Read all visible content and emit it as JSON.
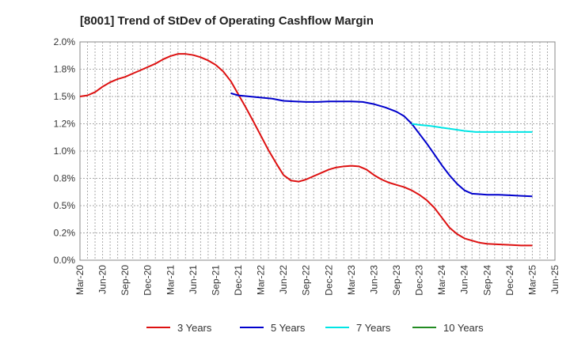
{
  "chart_data": {
    "type": "line",
    "title": "[8001]  Trend of StDev of Operating Cashflow Margin",
    "xlabel": "",
    "ylabel": "",
    "ylim": [
      0,
      2.0
    ],
    "yticks": [
      0,
      0.25,
      0.5,
      0.75,
      1.0,
      1.25,
      1.5,
      1.75,
      2.0
    ],
    "ytick_labels": [
      "0.0%",
      "0.2%",
      "0.5%",
      "0.8%",
      "1.0%",
      "1.2%",
      "1.5%",
      "1.8%",
      "2.0%"
    ],
    "x_labels": [
      "Mar-20",
      "Jun-20",
      "Sep-20",
      "Dec-20",
      "Mar-21",
      "Jun-21",
      "Sep-21",
      "Dec-21",
      "Mar-22",
      "Jun-22",
      "Sep-22",
      "Dec-22",
      "Mar-23",
      "Jun-23",
      "Sep-23",
      "Dec-23",
      "Mar-24",
      "Jun-24",
      "Sep-24",
      "Dec-24",
      "Mar-25",
      "Jun-25"
    ],
    "grid": true,
    "legend_position": "bottom",
    "series": [
      {
        "name": "3 Years",
        "color": "#dd1111",
        "points": [
          [
            0,
            1.5
          ],
          [
            0.33,
            1.51
          ],
          [
            0.67,
            1.54
          ],
          [
            1,
            1.59
          ],
          [
            1.33,
            1.63
          ],
          [
            1.67,
            1.66
          ],
          [
            2,
            1.68
          ],
          [
            2.33,
            1.71
          ],
          [
            2.67,
            1.74
          ],
          [
            3,
            1.77
          ],
          [
            3.33,
            1.8
          ],
          [
            3.67,
            1.84
          ],
          [
            4,
            1.87
          ],
          [
            4.33,
            1.89
          ],
          [
            4.67,
            1.89
          ],
          [
            5,
            1.88
          ],
          [
            5.33,
            1.86
          ],
          [
            5.67,
            1.83
          ],
          [
            6,
            1.79
          ],
          [
            6.33,
            1.73
          ],
          [
            6.67,
            1.64
          ],
          [
            7,
            1.52
          ],
          [
            7.33,
            1.4
          ],
          [
            7.67,
            1.27
          ],
          [
            8,
            1.14
          ],
          [
            8.33,
            1.01
          ],
          [
            8.67,
            0.89
          ],
          [
            9,
            0.78
          ],
          [
            9.33,
            0.73
          ],
          [
            9.67,
            0.72
          ],
          [
            10,
            0.74
          ],
          [
            10.33,
            0.77
          ],
          [
            10.67,
            0.8
          ],
          [
            11,
            0.83
          ],
          [
            11.33,
            0.85
          ],
          [
            11.67,
            0.86
          ],
          [
            12,
            0.865
          ],
          [
            12.33,
            0.86
          ],
          [
            12.67,
            0.83
          ],
          [
            13,
            0.78
          ],
          [
            13.33,
            0.74
          ],
          [
            13.67,
            0.71
          ],
          [
            14,
            0.69
          ],
          [
            14.33,
            0.67
          ],
          [
            14.67,
            0.64
          ],
          [
            15,
            0.6
          ],
          [
            15.33,
            0.55
          ],
          [
            15.67,
            0.48
          ],
          [
            16,
            0.39
          ],
          [
            16.33,
            0.3
          ],
          [
            16.67,
            0.24
          ],
          [
            17,
            0.2
          ],
          [
            17.33,
            0.18
          ],
          [
            17.67,
            0.16
          ],
          [
            18,
            0.15
          ],
          [
            18.5,
            0.145
          ],
          [
            19,
            0.14
          ],
          [
            19.5,
            0.135
          ],
          [
            20,
            0.135
          ]
        ]
      },
      {
        "name": "5 Years",
        "color": "#0000cc",
        "points": [
          [
            6.67,
            1.53
          ],
          [
            7,
            1.51
          ],
          [
            7.5,
            1.5
          ],
          [
            8,
            1.49
          ],
          [
            8.5,
            1.48
          ],
          [
            9,
            1.46
          ],
          [
            9.5,
            1.455
          ],
          [
            10,
            1.45
          ],
          [
            10.5,
            1.45
          ],
          [
            11,
            1.455
          ],
          [
            11.5,
            1.455
          ],
          [
            12,
            1.455
          ],
          [
            12.5,
            1.45
          ],
          [
            13,
            1.43
          ],
          [
            13.5,
            1.4
          ],
          [
            14,
            1.36
          ],
          [
            14.33,
            1.32
          ],
          [
            14.67,
            1.25
          ],
          [
            15,
            1.16
          ],
          [
            15.33,
            1.07
          ],
          [
            15.67,
            0.97
          ],
          [
            16,
            0.87
          ],
          [
            16.33,
            0.78
          ],
          [
            16.67,
            0.7
          ],
          [
            17,
            0.64
          ],
          [
            17.33,
            0.61
          ],
          [
            17.67,
            0.605
          ],
          [
            18,
            0.6
          ],
          [
            18.5,
            0.6
          ],
          [
            19,
            0.595
          ],
          [
            19.5,
            0.59
          ],
          [
            20,
            0.585
          ]
        ]
      },
      {
        "name": "7 Years",
        "color": "#00e5e5",
        "points": [
          [
            14.67,
            1.25
          ],
          [
            15,
            1.24
          ],
          [
            15.5,
            1.23
          ],
          [
            16,
            1.215
          ],
          [
            16.5,
            1.2
          ],
          [
            17,
            1.185
          ],
          [
            17.5,
            1.175
          ],
          [
            18,
            1.175
          ],
          [
            18.5,
            1.175
          ],
          [
            19,
            1.175
          ],
          [
            19.5,
            1.175
          ],
          [
            20,
            1.175
          ]
        ]
      },
      {
        "name": "10 Years",
        "color": "#228b22",
        "points": []
      }
    ]
  }
}
